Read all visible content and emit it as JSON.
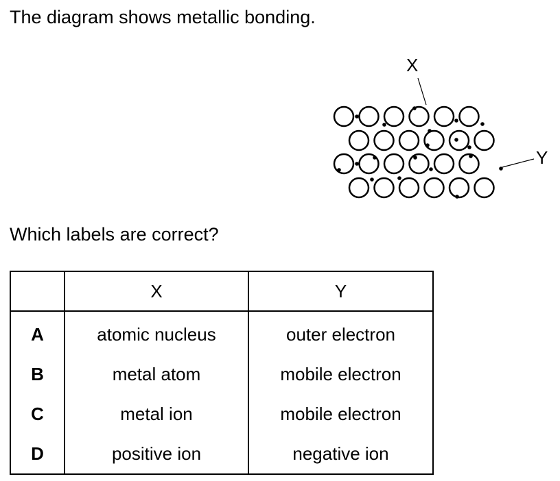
{
  "intro_text": "The diagram shows metallic bonding.",
  "diagram": {
    "label_x": "X",
    "label_y": "Y"
  },
  "question_text": "Which labels are correct?",
  "table": {
    "headers": [
      "",
      "X",
      "Y"
    ],
    "rows": [
      {
        "letter": "A",
        "x": "atomic nucleus",
        "y": "outer electron"
      },
      {
        "letter": "B",
        "x": "metal atom",
        "y": "mobile electron"
      },
      {
        "letter": "C",
        "x": "metal ion",
        "y": "mobile electron"
      },
      {
        "letter": "D",
        "x": "positive ion",
        "y": "negative ion"
      }
    ]
  }
}
